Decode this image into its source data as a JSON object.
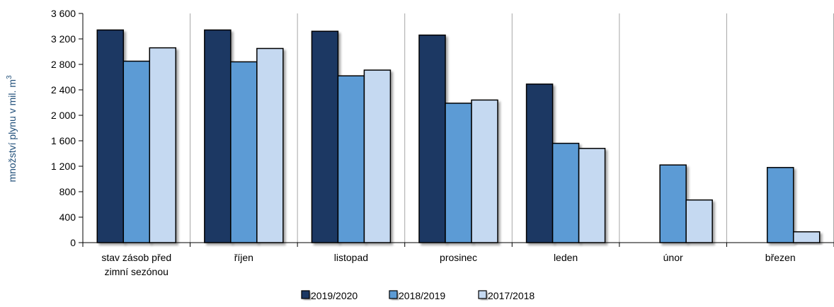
{
  "chart_data": {
    "type": "bar",
    "ylabel": "množství plynu v mil. m",
    "ylabel_superscript": "3",
    "ylim": [
      0,
      3600
    ],
    "y_ticks": [
      0,
      400,
      800,
      1200,
      1600,
      2000,
      2400,
      2800,
      3200,
      3600
    ],
    "y_tick_labels": [
      "0",
      "400",
      "800",
      "1 200",
      "1 600",
      "2 000",
      "2 400",
      "2 800",
      "3 200",
      "3 600"
    ],
    "categories": [
      [
        "stav zásob před",
        "zimní sezónou"
      ],
      [
        "říjen"
      ],
      [
        "listopad"
      ],
      [
        "prosinec"
      ],
      [
        "leden"
      ],
      [
        "únor"
      ],
      [
        "březen"
      ]
    ],
    "series": [
      {
        "name": "2019/2020",
        "color": "#1f3864",
        "values": [
          3340,
          3340,
          3320,
          3260,
          2490,
          null,
          null
        ]
      },
      {
        "name": "2018/2019",
        "color": "#5b9bd5",
        "values": [
          2850,
          2840,
          2620,
          2190,
          1560,
          1220,
          1180
        ]
      },
      {
        "name": "2017/2018",
        "color": "#c5d9f1",
        "values": [
          3060,
          3050,
          2710,
          2240,
          1480,
          670,
          170
        ]
      }
    ],
    "grid": "vertical-separators",
    "legend": "bottom-center"
  }
}
